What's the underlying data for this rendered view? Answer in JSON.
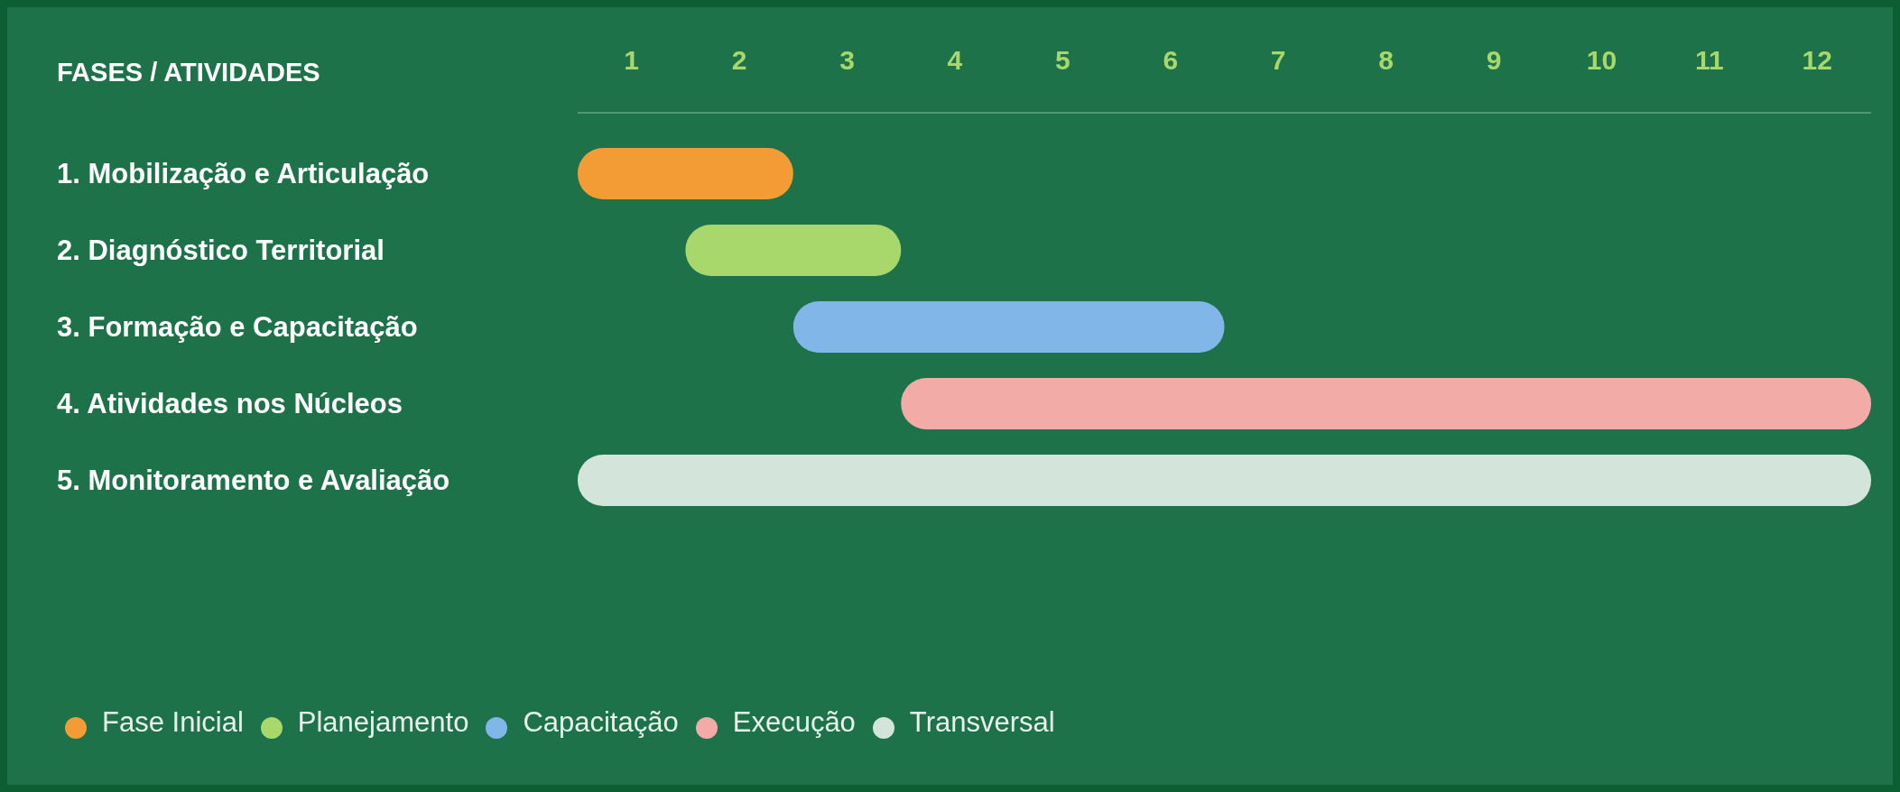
{
  "chart_data": {
    "type": "bar",
    "orientation": "horizontal",
    "ylabel": "FASES / ATIVIDADES",
    "categories": [
      "1. Mobilização e Articulação",
      "2. Diagnóstico Territorial",
      "3. Formação e Capacitação",
      "4. Atividades nos Núcleos",
      "5. Monitoramento e Avaliação"
    ],
    "series": [
      {
        "name": "Fase Inicial",
        "color": "#f39c35",
        "values": [
          2,
          null,
          null,
          null,
          null
        ],
        "base": [
          0,
          null,
          null,
          null,
          null
        ]
      },
      {
        "name": "Planejamento",
        "color": "#a8d86b",
        "values": [
          null,
          2,
          null,
          null,
          null
        ],
        "base": [
          null,
          1,
          null,
          null,
          null
        ]
      },
      {
        "name": "Capacitação",
        "color": "#80b6e8",
        "values": [
          null,
          null,
          4,
          null,
          null
        ],
        "base": [
          null,
          null,
          2,
          null,
          null
        ]
      },
      {
        "name": "Execução",
        "color": "#f2aba7",
        "values": [
          null,
          null,
          null,
          9,
          null
        ],
        "base": [
          null,
          null,
          null,
          3,
          null
        ]
      },
      {
        "name": "Transversal",
        "color": "#d3e5db",
        "values": [
          null,
          null,
          null,
          null,
          12
        ],
        "base": [
          null,
          null,
          null,
          null,
          0
        ]
      }
    ],
    "xlim": [
      0,
      12
    ],
    "xticks": [
      {
        "value": 0.5,
        "label": "1"
      },
      {
        "value": 1.5,
        "label": "2"
      },
      {
        "value": 2.5,
        "label": "3"
      },
      {
        "value": 3.5,
        "label": "4"
      },
      {
        "value": 4.5,
        "label": "5"
      },
      {
        "value": 5.5,
        "label": "6"
      },
      {
        "value": 6.5,
        "label": "7"
      },
      {
        "value": 7.5,
        "label": "8"
      },
      {
        "value": 8.5,
        "label": "9"
      },
      {
        "value": 9.5,
        "label": "10"
      },
      {
        "value": 10.5,
        "label": "11"
      },
      {
        "value": 11.5,
        "label": "12"
      }
    ],
    "legend": "bottom left"
  }
}
